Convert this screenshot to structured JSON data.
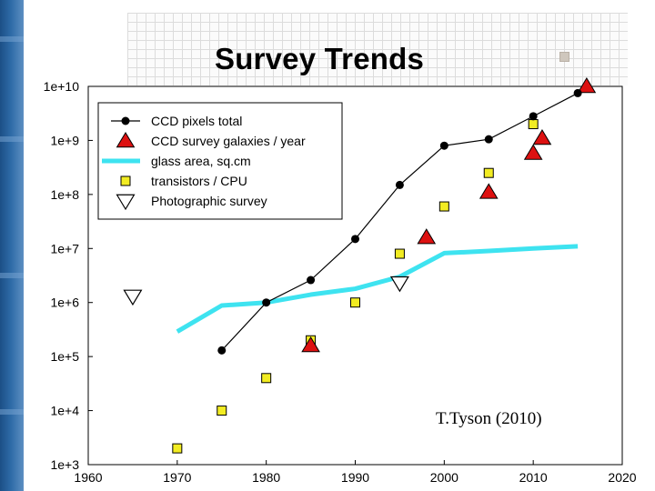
{
  "slide": {
    "title": "Survey Trends",
    "accent_color": "#2d6aa6"
  },
  "chart_data": {
    "type": "scatter",
    "title": "Survey Trends",
    "xlabel": "",
    "ylabel": "",
    "xlim": [
      1960,
      2020
    ],
    "ylim_log10": [
      3,
      10
    ],
    "x_ticks": [
      1960,
      1970,
      1980,
      1990,
      2000,
      2010,
      2020
    ],
    "y_ticks": [
      {
        "exp": 3,
        "label": "1e+3"
      },
      {
        "exp": 4,
        "label": "1e+4"
      },
      {
        "exp": 5,
        "label": "1e+5"
      },
      {
        "exp": 6,
        "label": "1e+6"
      },
      {
        "exp": 7,
        "label": "1e+7"
      },
      {
        "exp": 8,
        "label": "1e+8"
      },
      {
        "exp": 9,
        "label": "1e+9"
      },
      {
        "exp": 10,
        "label": "1e+10"
      }
    ],
    "annotation": "T.Tyson (2010)",
    "legend_position": "top-left",
    "series": [
      {
        "name": "CCD pixels total",
        "style": "line-dot",
        "color": "#000000",
        "points": [
          [
            1975,
            130000.0
          ],
          [
            1980,
            1000000.0
          ],
          [
            1985,
            2600000.0
          ],
          [
            1990,
            15000000.0
          ],
          [
            1995,
            150000000.0
          ],
          [
            2000,
            800000000.0
          ],
          [
            2005,
            1050000000.0
          ],
          [
            2010,
            2800000000.0
          ],
          [
            2015,
            7500000000.0
          ]
        ]
      },
      {
        "name": "CCD survey galaxies / year",
        "style": "triangle-up",
        "color": "#dd1111",
        "points": [
          [
            1985,
            160000.0
          ],
          [
            1998,
            16000000.0
          ],
          [
            2005,
            110000000.0
          ],
          [
            2010,
            580000000.0
          ],
          [
            2011,
            1100000000.0
          ],
          [
            2016,
            10000000000.0
          ]
        ]
      },
      {
        "name": "glass area, sq.cm",
        "style": "thick-line",
        "color": "#3ee3f0",
        "points": [
          [
            1970,
            290000.0
          ],
          [
            1975,
            880000.0
          ],
          [
            1980,
            1000000.0
          ],
          [
            1985,
            1400000.0
          ],
          [
            1990,
            1800000.0
          ],
          [
            1995,
            3000000.0
          ],
          [
            2000,
            8200000.0
          ],
          [
            2005,
            9000000.0
          ],
          [
            2010,
            10000000.0
          ],
          [
            2015,
            11000000.0
          ]
        ]
      },
      {
        "name": "transistors / CPU",
        "style": "square",
        "color": "#f2ec22",
        "points": [
          [
            1970,
            2000.0
          ],
          [
            1975,
            10000.0
          ],
          [
            1980,
            40000.0
          ],
          [
            1985,
            200000.0
          ],
          [
            1990,
            1000000.0
          ],
          [
            1995,
            8000000.0
          ],
          [
            2000,
            60000000.0
          ],
          [
            2005,
            250000000.0
          ],
          [
            2010,
            2000000000.0
          ]
        ]
      },
      {
        "name": "Photographic survey",
        "style": "triangle-down",
        "color": "#ffffff",
        "points": [
          [
            1965,
            1300000.0
          ],
          [
            1995,
            2300000.0
          ]
        ]
      }
    ]
  }
}
